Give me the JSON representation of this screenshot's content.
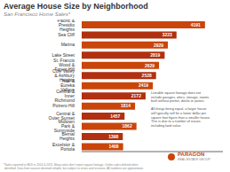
{
  "chart_data": {
    "type": "bar",
    "orientation": "horizontal",
    "title": "Average House Size by Neighborhood",
    "subtitle": "San Francisco Home Sales*",
    "categories": [
      "Pacific & Presidio Heights",
      "Sea Cliff",
      "Marina",
      "Lake Street",
      "St. Francis Wood & Forest Hill",
      "Cole Valley & Ashbury Heights",
      "Noe & Eureka Valleys",
      "Central & Inner Richmond",
      "Potrero Hill",
      "Central & Outer Sunset",
      "Midtown Park & Sunnyside",
      "Bernal Heights",
      "Excelsior & Portola"
    ],
    "values": [
      4191,
      3223,
      2929,
      2819,
      2629,
      2528,
      2419,
      2172,
      1814,
      1457,
      1862,
      1398,
      1408
    ],
    "colors": [
      "#c9450a",
      "#b03010",
      "#c9450a",
      "#b03010",
      "#c9450a",
      "#b03010",
      "#c9450a",
      "#b03010",
      "#c9450a",
      "#b03010",
      "#c9450a",
      "#b03010",
      "#c9450a"
    ],
    "xlim": [
      0,
      4800
    ],
    "data_labels": true,
    "tick_labels": "y",
    "grid": false,
    "annotations": [
      "Liveable square footage does not\ninclude garages, attics, storage, rooms\nbuilt without permit, decks or patios.\n\nAll things being equal, a larger house\nwill typically sell for a lower dollar per\nsquare foot figure than a smaller house.\nThis is due to a number of issues\nincluding land value.",
      "PARAGON",
      "REAL ESTATE GROUP",
      "*Sales reported to MLS in 2014 & 2015. Many sales don't report square footage. Outlier sales deleted when\n identified. Data from sources deemed reliable, but subject to errors and revisions. All numbers are approximate."
    ]
  }
}
